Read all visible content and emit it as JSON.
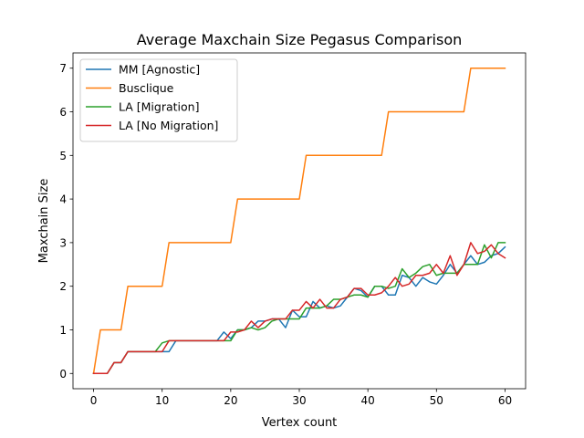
{
  "chart_data": {
    "type": "line",
    "title": "Average Maxchain Size Pegasus Comparison",
    "xlabel": "Vertex count",
    "ylabel": "Maxchain Size",
    "xlim": [
      -3,
      63
    ],
    "ylim": [
      -0.35,
      7.35
    ],
    "xticks": [
      0,
      10,
      20,
      30,
      40,
      50,
      60
    ],
    "yticks": [
      0,
      1,
      2,
      3,
      4,
      5,
      6,
      7
    ],
    "grid": false,
    "legend": "top-left",
    "x": [
      0,
      1,
      2,
      3,
      4,
      5,
      6,
      7,
      8,
      9,
      10,
      11,
      12,
      13,
      14,
      15,
      16,
      17,
      18,
      19,
      20,
      21,
      22,
      23,
      24,
      25,
      26,
      27,
      28,
      29,
      30,
      31,
      32,
      33,
      34,
      35,
      36,
      37,
      38,
      39,
      40,
      41,
      42,
      43,
      44,
      45,
      46,
      47,
      48,
      49,
      50,
      51,
      52,
      53,
      54,
      55,
      56,
      57,
      58,
      59,
      60
    ],
    "series": [
      {
        "name": "MM [Agnostic]",
        "color": "#1f77b4",
        "values": [
          0,
          0,
          0,
          0.25,
          0.25,
          0.5,
          0.5,
          0.5,
          0.5,
          0.5,
          0.5,
          0.5,
          0.75,
          0.75,
          0.75,
          0.75,
          0.75,
          0.75,
          0.75,
          0.95,
          0.8,
          1.0,
          1.0,
          1.05,
          1.2,
          1.2,
          1.25,
          1.25,
          1.05,
          1.45,
          1.3,
          1.3,
          1.65,
          1.5,
          1.55,
          1.5,
          1.55,
          1.75,
          1.95,
          1.9,
          1.75,
          2.0,
          2.0,
          1.8,
          1.8,
          2.25,
          2.2,
          2.0,
          2.2,
          2.1,
          2.05,
          2.25,
          2.5,
          2.3,
          2.5,
          2.7,
          2.5,
          2.55,
          2.7,
          2.75,
          2.9
        ]
      },
      {
        "name": "Busclique",
        "color": "#ff7f0e",
        "values": [
          0,
          1,
          1,
          1,
          1,
          2,
          2,
          2,
          2,
          2,
          2,
          3,
          3,
          3,
          3,
          3,
          3,
          3,
          3,
          3,
          3,
          4,
          4,
          4,
          4,
          4,
          4,
          4,
          4,
          4,
          4,
          5,
          5,
          5,
          5,
          5,
          5,
          5,
          5,
          5,
          5,
          5,
          5,
          6,
          6,
          6,
          6,
          6,
          6,
          6,
          6,
          6,
          6,
          6,
          6,
          7,
          7,
          7,
          7,
          7,
          7
        ]
      },
      {
        "name": "LA [Migration]",
        "color": "#2ca02c",
        "values": [
          0,
          0,
          0,
          0.25,
          0.25,
          0.5,
          0.5,
          0.5,
          0.5,
          0.5,
          0.7,
          0.75,
          0.75,
          0.75,
          0.75,
          0.75,
          0.75,
          0.75,
          0.75,
          0.75,
          0.75,
          1.0,
          1.0,
          1.05,
          1.0,
          1.05,
          1.2,
          1.25,
          1.25,
          1.25,
          1.25,
          1.5,
          1.5,
          1.5,
          1.55,
          1.7,
          1.7,
          1.75,
          1.8,
          1.8,
          1.75,
          2.0,
          2.0,
          1.95,
          2.0,
          2.4,
          2.2,
          2.3,
          2.45,
          2.5,
          2.25,
          2.3,
          2.3,
          2.3,
          2.5,
          2.5,
          2.5,
          2.95,
          2.65,
          3.0,
          3.0
        ]
      },
      {
        "name": "LA [No Migration]",
        "color": "#d62728",
        "values": [
          0,
          0,
          0,
          0.25,
          0.25,
          0.5,
          0.5,
          0.5,
          0.5,
          0.5,
          0.5,
          0.75,
          0.75,
          0.75,
          0.75,
          0.75,
          0.75,
          0.75,
          0.75,
          0.75,
          0.95,
          0.95,
          1.0,
          1.2,
          1.05,
          1.2,
          1.25,
          1.25,
          1.25,
          1.45,
          1.45,
          1.65,
          1.5,
          1.7,
          1.5,
          1.5,
          1.7,
          1.75,
          1.95,
          1.95,
          1.8,
          1.8,
          1.85,
          2.0,
          2.2,
          2.0,
          2.05,
          2.25,
          2.25,
          2.3,
          2.5,
          2.3,
          2.7,
          2.25,
          2.5,
          3.0,
          2.75,
          2.8,
          2.95,
          2.75,
          2.65
        ]
      }
    ]
  }
}
